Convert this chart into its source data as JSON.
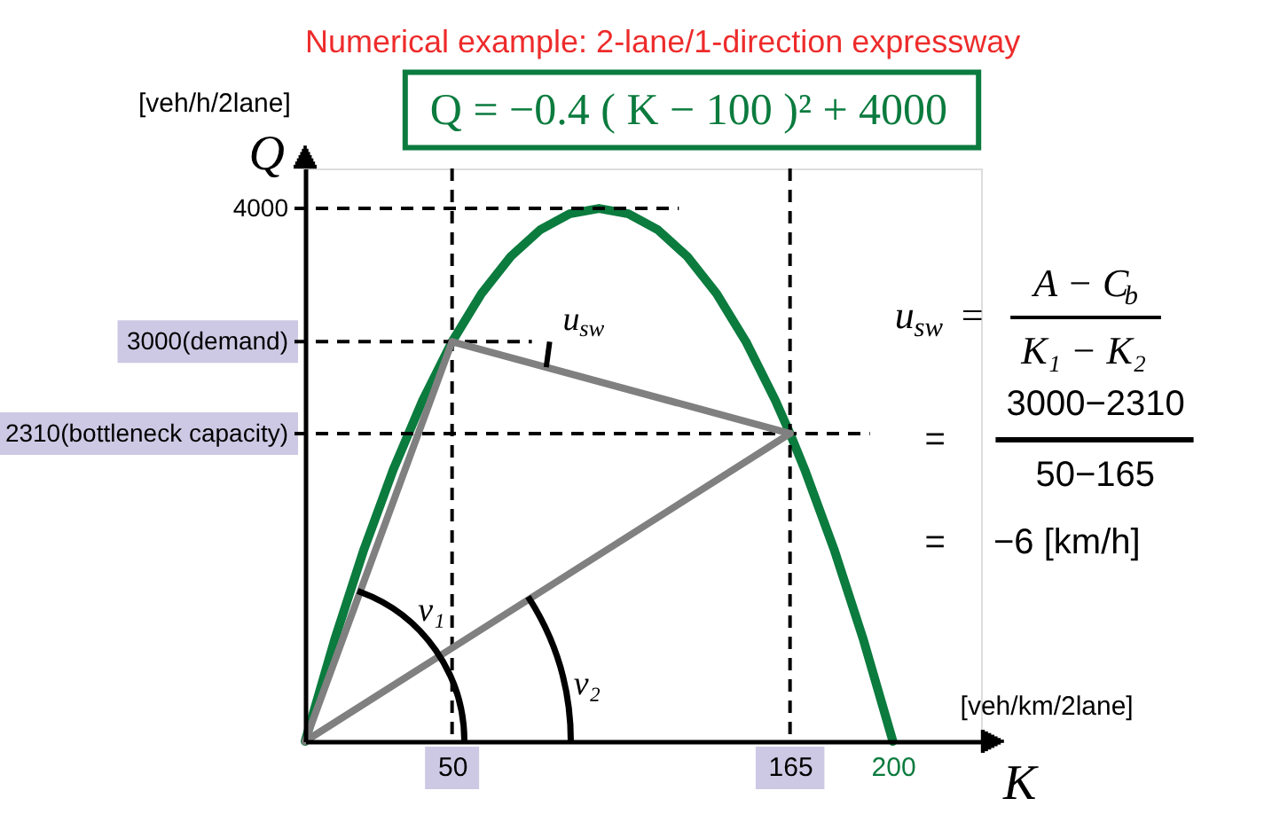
{
  "chart_data": {
    "type": "line",
    "title": "Numerical example: 2-lane/1-direction expressway",
    "xlabel": "K",
    "ylabel": "Q",
    "series": [
      {
        "color": "#0b7b3e",
        "x": [
          0,
          10,
          20,
          30,
          40,
          50,
          60,
          70,
          80,
          90,
          100,
          110,
          120,
          130,
          140,
          150,
          160,
          165,
          170,
          180,
          190,
          200
        ],
        "values": [
          0,
          760,
          1440,
          2040,
          2560,
          3000,
          3360,
          3640,
          3840,
          3960,
          4000,
          3960,
          3840,
          3640,
          3360,
          3000,
          2560,
          2310,
          2040,
          1440,
          760,
          0
        ]
      },
      {
        "color": "#808080",
        "x": [
          0,
          50
        ],
        "values": [
          0,
          3000
        ]
      },
      {
        "color": "#808080",
        "x": [
          0,
          165
        ],
        "values": [
          0,
          2310
        ]
      },
      {
        "color": "#808080",
        "x": [
          50,
          165
        ],
        "values": [
          3000,
          2310
        ]
      }
    ],
    "xlim": [
      0,
      230
    ],
    "ylim": [
      0,
      4300
    ],
    "xticks": [
      50,
      165,
      200
    ],
    "yticks": [
      {
        "value": 2310,
        "label": "2310(bottleneck capacity)"
      },
      {
        "value": 3000,
        "label": "3000(demand)"
      },
      4000
    ],
    "ref_lines": [
      {
        "axis": "y",
        "value": 4000,
        "color": "#000000",
        "line_style": "dashed"
      },
      {
        "axis": "x",
        "value": 50,
        "color": "#000000",
        "line_style": "dashed"
      },
      {
        "axis": "y",
        "value": 3000,
        "color": "#000000",
        "line_style": "dashed"
      },
      {
        "axis": "x",
        "value": 165,
        "color": "#000000",
        "line_style": "dashed"
      },
      {
        "axis": "y",
        "value": 2310,
        "color": "#000000",
        "line_style": "dashed"
      }
    ],
    "annotations": [
      "Q = −0.4 ( K − 100 )² + 4000",
      "[veh/h/2lane]",
      "[veh/km/2lane]",
      "u$_{sw}$ =",
      "A − C$_{b}$",
      "K₁ − K₂",
      "=",
      "3000−2310",
      "50−165",
      "=",
      "−6 [km/h]",
      "v₁",
      "v₂",
      "u$_{sw}$"
    ]
  }
}
